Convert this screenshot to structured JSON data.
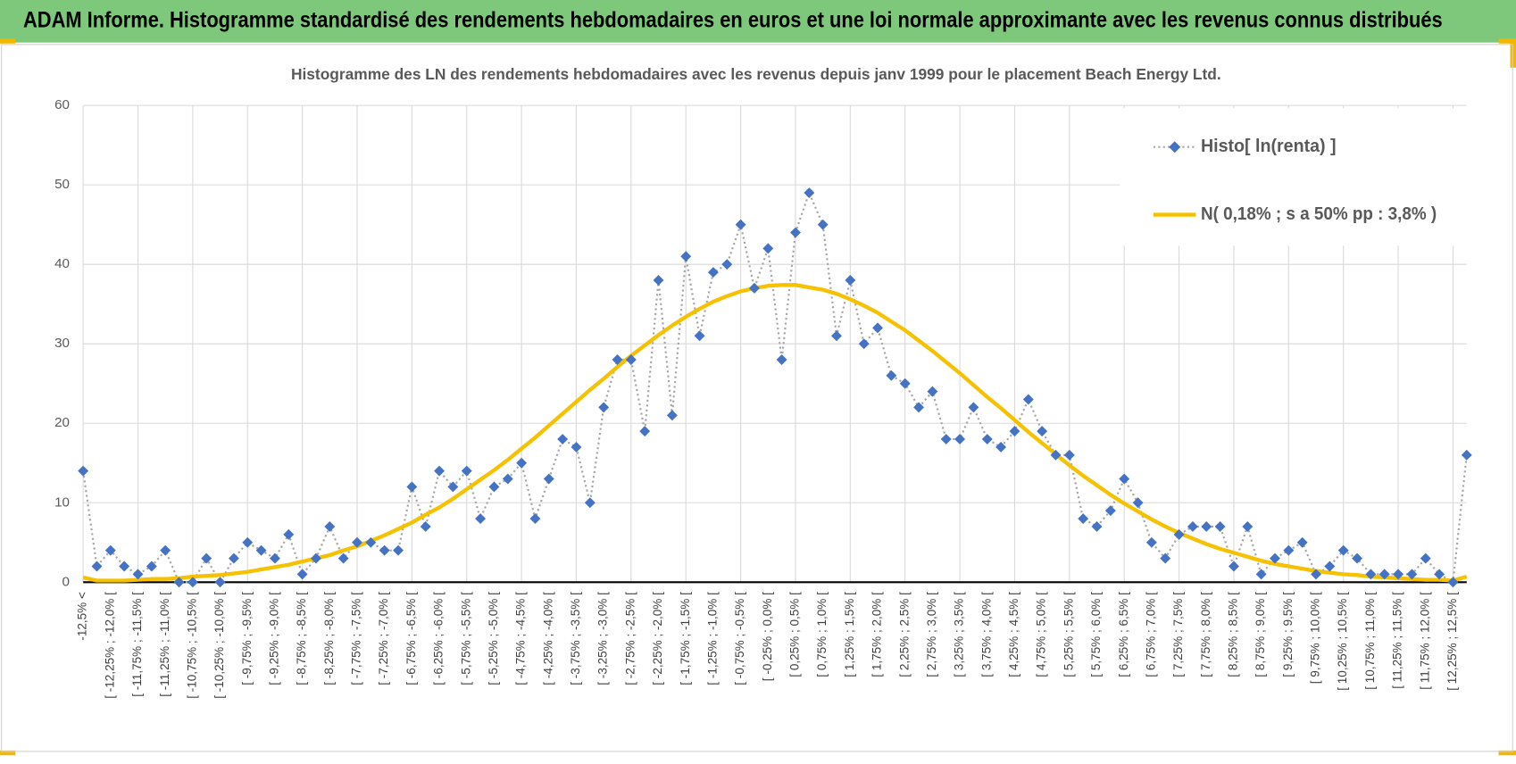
{
  "header": {
    "title": "ADAM Informe. Histogramme standardisé des rendements hebdomadaires en euros et une loi normale approximante avec les revenus connus distribués"
  },
  "chart_data": {
    "type": "line",
    "title": "Histogramme des LN des rendements hebdomadaires avec les revenus depuis janv 1999 pour le placement Beach Energy Ltd.",
    "categories": [
      "-12,5% <",
      null,
      "[ -12,25% ; -12,0% [",
      null,
      "[ -11,75% ; -11,5% [",
      null,
      "[ -11,25% ; -11,0% [",
      null,
      "[ -10,75% ; -10,5% [",
      null,
      "[ -10,25% ; -10,0% [",
      null,
      "[ -9,75% ; -9,5% [",
      null,
      "[ -9,25% ; -9,0% [",
      null,
      "[ -8,75% ; -8,5% [",
      null,
      "[ -8,25% ; -8,0% [",
      null,
      "[ -7,75% ; -7,5% [",
      null,
      "[ -7,25% ; -7,0% [",
      null,
      "[ -6,75% ; -6,5% [",
      null,
      "[ -6,25% ; -6,0% [",
      null,
      "[ -5,75% ; -5,5% [",
      null,
      "[ -5,25% ; -5,0% [",
      null,
      "[ -4,75% ; -4,5% [",
      null,
      "[ -4,25% ; -4,0% [",
      null,
      "[ -3,75% ; -3,5% [",
      null,
      "[ -3,25% ; -3,0% [",
      null,
      "[ -2,75% ; -2,5% [",
      null,
      "[ -2,25% ; -2,0% [",
      null,
      "[ -1,75% ; -1,5% [",
      null,
      "[ -1,25% ; -1,0% [",
      null,
      "[ -0,75% ; -0,5% [",
      null,
      "[ -0,25% ; 0,0% [",
      null,
      "[ 0,25% ; 0,5% [",
      null,
      "[ 0,75% ; 1,0% [",
      null,
      "[ 1,25% ; 1,5% [",
      null,
      "[ 1,75% ; 2,0% [",
      null,
      "[ 2,25% ; 2,5% [",
      null,
      "[ 2,75% ; 3,0% [",
      null,
      "[ 3,25% ; 3,5% [",
      null,
      "[ 3,75% ; 4,0% [",
      null,
      "[ 4,25% ; 4,5% [",
      null,
      "[ 4,75% ; 5,0% [",
      null,
      "[ 5,25% ; 5,5% [",
      null,
      "[ 5,75% ; 6,0% [",
      null,
      "[ 6,25% ; 6,5% [",
      null,
      "[ 6,75% ; 7,0% [",
      null,
      "[ 7,25% ; 7,5% [",
      null,
      "[ 7,75% ; 8,0% [",
      null,
      "[ 8,25% ; 8,5% [",
      null,
      "[ 8,75% ; 9,0% [",
      null,
      "[ 9,25% ; 9,5% [",
      null,
      "[ 9,75% ; 10,0% [",
      null,
      "[ 10,25% ; 10,5% [",
      null,
      "[ 10,75% ; 11,0% [",
      null,
      "[ 11,25% ; 11,5% [",
      null,
      "[ 11,75% ; 12,0% [",
      null,
      "[ 12,25% ; 12,5% [",
      null
    ],
    "series": [
      {
        "name": "Histo[ ln(renta) ]",
        "color": "#4472c4",
        "values": [
          14,
          2,
          4,
          2,
          1,
          2,
          4,
          0,
          0,
          3,
          0,
          3,
          5,
          4,
          3,
          6,
          1,
          3,
          7,
          3,
          5,
          5,
          4,
          4,
          12,
          7,
          14,
          12,
          14,
          8,
          12,
          13,
          15,
          8,
          13,
          18,
          17,
          10,
          22,
          28,
          28,
          19,
          38,
          21,
          41,
          31,
          39,
          40,
          45,
          37,
          42,
          28,
          44,
          49,
          45,
          31,
          38,
          30,
          32,
          26,
          25,
          22,
          24,
          18,
          18,
          22,
          18,
          17,
          19,
          23,
          19,
          16,
          16,
          8,
          7,
          9,
          13,
          10,
          5,
          3,
          6,
          7,
          7,
          7,
          2,
          7,
          1,
          3,
          4,
          5,
          1,
          2,
          4,
          3,
          1,
          1,
          1,
          1,
          3,
          1,
          0,
          16
        ]
      },
      {
        "name": "N( 0,18% ; s a 50% pp : 3,8% )",
        "color": "#f5c100",
        "values": [
          0.6,
          0.2,
          0.2,
          0.2,
          0.3,
          0.4,
          0.4,
          0.5,
          0.7,
          0.8,
          0.9,
          1.1,
          1.3,
          1.6,
          1.9,
          2.2,
          2.6,
          3.0,
          3.4,
          4.0,
          4.5,
          5.2,
          5.9,
          6.7,
          7.5,
          8.5,
          9.4,
          10.5,
          11.7,
          12.9,
          14.1,
          15.4,
          16.8,
          18.2,
          19.7,
          21.2,
          22.7,
          24.2,
          25.6,
          27.1,
          28.5,
          29.8,
          31.1,
          32.3,
          33.4,
          34.4,
          35.3,
          36.0,
          36.6,
          37.0,
          37.3,
          37.4,
          37.4,
          37.1,
          36.8,
          36.3,
          35.6,
          34.8,
          33.9,
          32.8,
          31.7,
          30.4,
          29.1,
          27.7,
          26.3,
          24.8,
          23.3,
          21.9,
          20.4,
          18.9,
          17.5,
          16.1,
          14.7,
          13.4,
          12.2,
          11.0,
          9.9,
          8.9,
          7.9,
          7.0,
          6.2,
          5.5,
          4.8,
          4.2,
          3.7,
          3.2,
          2.7,
          2.3,
          2.0,
          1.7,
          1.4,
          1.2,
          1.0,
          0.9,
          0.7,
          0.6,
          0.5,
          0.4,
          0.3,
          0.3,
          0.2,
          0.7
        ]
      }
    ],
    "ylim": [
      0,
      60
    ],
    "yticks": [
      0,
      10,
      20,
      30,
      40,
      50,
      60
    ],
    "grid": true
  }
}
